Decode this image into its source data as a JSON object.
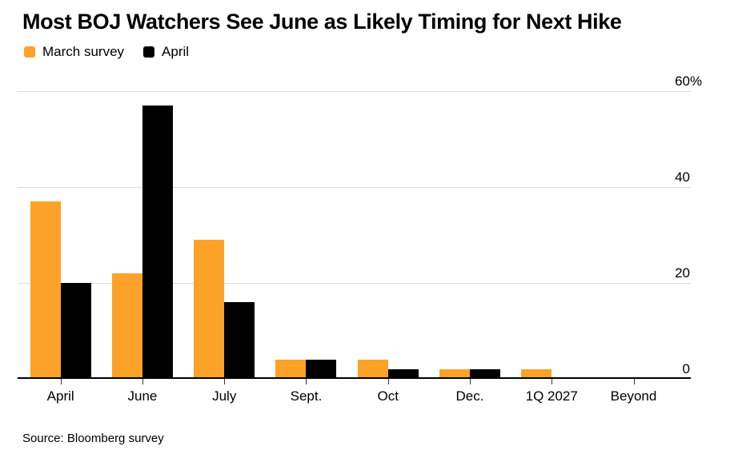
{
  "chart_data": {
    "type": "bar",
    "title": "Most BOJ Watchers See June as Likely Timing for Next Hike",
    "categories": [
      "April",
      "June",
      "July",
      "Sept.",
      "Oct",
      "Dec.",
      "1Q 2027",
      "Beyond"
    ],
    "series": [
      {
        "name": "March survey",
        "color": "#FDA228",
        "values": [
          37,
          22,
          29,
          4,
          4,
          2,
          2,
          0
        ]
      },
      {
        "name": "April",
        "color": "#000000",
        "values": [
          20,
          57,
          16,
          4,
          2,
          2,
          0,
          0
        ]
      }
    ],
    "ylabel": "",
    "xlabel": "",
    "ylim": [
      0,
      60
    ],
    "yticks": [
      {
        "value": 0,
        "label": "0",
        "suffix": ""
      },
      {
        "value": 20,
        "label": "20",
        "suffix": ""
      },
      {
        "value": 40,
        "label": "40",
        "suffix": ""
      },
      {
        "value": 60,
        "label": "60",
        "suffix": "%"
      }
    ],
    "grid": "horizontal",
    "legend_position": "top-left",
    "source": "Source: Bloomberg survey"
  },
  "colors": {
    "gridline": "#dcdcdc",
    "axis": "#000000",
    "text": "#000000"
  }
}
